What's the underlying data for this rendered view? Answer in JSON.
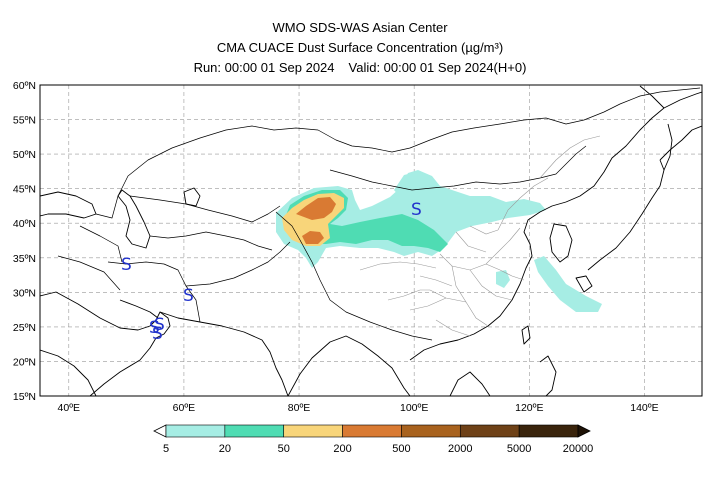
{
  "header": {
    "line1": "WMO SDS-WAS Asian Center",
    "line2": "CMA CUACE Dust Surface Concentration (µg/m³)",
    "run": "Run: 00:00 01 Sep 2024",
    "valid": "Valid: 00:00 01 Sep 2024(H+0)"
  },
  "map": {
    "lon_range": [
      35,
      150
    ],
    "lat_range": [
      15,
      60
    ],
    "lon_ticks": [
      "40ºE",
      "60ºE",
      "80ºE",
      "100ºE",
      "120ºE",
      "140ºE"
    ],
    "lat_ticks": [
      "60ºN",
      "55ºN",
      "50ºN",
      "45ºN",
      "40ºN",
      "35ºN",
      "30ºN",
      "25ºN",
      "20ºN",
      "15ºN"
    ],
    "gridlines": "dashed",
    "tropical_cyclone_symbols": [
      {
        "lon": 50,
        "lat": 34
      },
      {
        "lon": 56.5,
        "lat": 29.5
      },
      {
        "lon": 55,
        "lat": 26
      },
      {
        "lon": 54.5,
        "lat": 24.5
      },
      {
        "lon": 55.5,
        "lat": 25
      },
      {
        "lon": 100,
        "lat": 42.5
      }
    ]
  },
  "colorbar": {
    "levels": [
      "5",
      "20",
      "50",
      "200",
      "500",
      "2000",
      "5000",
      "20000"
    ],
    "colors": [
      "#a6ede4",
      "#4fdcb3",
      "#f8d57a",
      "#d97a33",
      "#a8621e",
      "#6e4117",
      "#3a240c"
    ],
    "unit": "µg/m³"
  }
}
